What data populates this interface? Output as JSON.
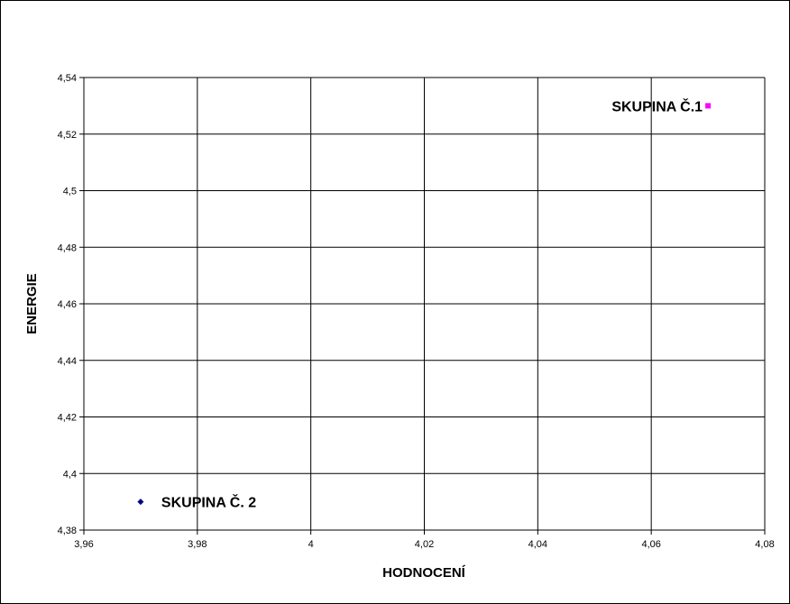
{
  "chart_data": {
    "type": "scatter",
    "title": "",
    "xlabel": "HODNOCENÍ",
    "ylabel": "ENERGIE",
    "xlim": [
      3.96,
      4.08
    ],
    "ylim": [
      4.38,
      4.54
    ],
    "x_ticks": [
      "3,96",
      "3,98",
      "4",
      "4,02",
      "4,04",
      "4,06",
      "4,08"
    ],
    "y_ticks": [
      "4,38",
      "4,4",
      "4,42",
      "4,44",
      "4,46",
      "4,48",
      "4,5",
      "4,52",
      "4,54"
    ],
    "grid": true,
    "series": [
      {
        "label": "SKUPINA Č.1",
        "x": 4.07,
        "y": 4.53,
        "marker": "square",
        "color": "#ff00ff"
      },
      {
        "label": "SKUPINA Č. 2",
        "x": 3.97,
        "y": 4.39,
        "marker": "diamond",
        "color": "#000080"
      }
    ]
  }
}
